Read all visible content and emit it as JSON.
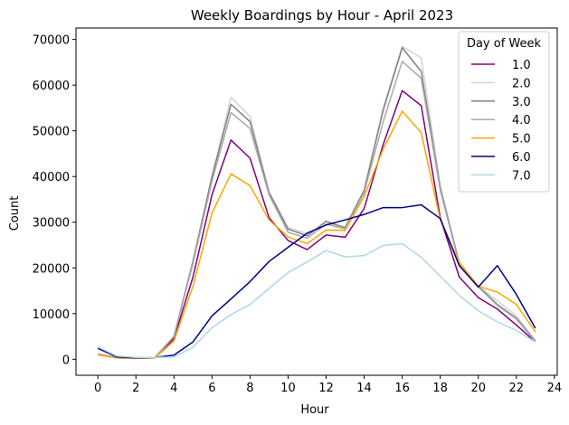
{
  "chart_data": {
    "type": "line",
    "title": "Weekly Boardings by Hour - April 2023",
    "xlabel": "Hour",
    "ylabel": "Count",
    "xlim": [
      -1.15,
      24.15
    ],
    "ylim": [
      -3500,
      72500
    ],
    "x_ticks": [
      0,
      2,
      4,
      6,
      8,
      10,
      12,
      14,
      16,
      18,
      20,
      22,
      24
    ],
    "y_ticks": [
      0,
      10000,
      20000,
      30000,
      40000,
      50000,
      60000,
      70000
    ],
    "grid": false,
    "legend": {
      "title": "Day of Week",
      "placement": "top-right"
    },
    "x": [
      0,
      1,
      2,
      3,
      4,
      5,
      6,
      7,
      8,
      9,
      10,
      11,
      12,
      13,
      14,
      15,
      16,
      17,
      18,
      19,
      20,
      21,
      22,
      23
    ],
    "series": [
      {
        "name": "1.0",
        "color": "#800080",
        "values": [
          1000,
          300,
          200,
          300,
          4500,
          18000,
          36000,
          48000,
          44000,
          31000,
          26000,
          24000,
          27200,
          26700,
          33000,
          47000,
          58800,
          55500,
          31000,
          18000,
          13500,
          11000,
          7500,
          3800
        ]
      },
      {
        "name": "2.0",
        "color": "#d3d3d3",
        "values": [
          1200,
          400,
          200,
          400,
          5000,
          21000,
          40000,
          57300,
          53200,
          36500,
          28800,
          27500,
          29500,
          29000,
          37000,
          55000,
          68500,
          66000,
          38000,
          21000,
          16000,
          12800,
          9500,
          4100
        ]
      },
      {
        "name": "3.0",
        "color": "#808080",
        "values": [
          1100,
          400,
          200,
          400,
          5000,
          21500,
          40000,
          55800,
          52000,
          36500,
          28500,
          27000,
          30200,
          28800,
          37000,
          54500,
          68200,
          63000,
          37500,
          21000,
          16000,
          12000,
          9000,
          4000
        ]
      },
      {
        "name": "4.0",
        "color": "#a9a9a9",
        "values": [
          1100,
          400,
          200,
          400,
          5000,
          21000,
          39000,
          54000,
          50500,
          36000,
          27800,
          26500,
          29600,
          28500,
          36500,
          52000,
          65200,
          61500,
          37000,
          20800,
          15800,
          11800,
          8800,
          3900
        ]
      },
      {
        "name": "5.0",
        "color": "#ffa500",
        "values": [
          1000,
          300,
          200,
          300,
          4000,
          16000,
          32000,
          40600,
          38000,
          30500,
          26800,
          25300,
          28300,
          28200,
          35700,
          46000,
          54300,
          49600,
          30500,
          21200,
          16000,
          14700,
          12000,
          6000
        ]
      },
      {
        "name": "6.0",
        "color": "#00008b",
        "values": [
          2400,
          500,
          300,
          400,
          900,
          3800,
          9500,
          13200,
          17000,
          21400,
          24500,
          27600,
          29400,
          30500,
          31700,
          33200,
          33200,
          33800,
          30800,
          20500,
          15800,
          20500,
          14200,
          6800
        ]
      },
      {
        "name": "7.0",
        "color": "#add8e6",
        "values": [
          2700,
          700,
          400,
          400,
          500,
          2600,
          6900,
          9800,
          12000,
          15500,
          19000,
          21300,
          23800,
          22400,
          22700,
          24900,
          25300,
          22300,
          18200,
          14000,
          10600,
          8200,
          6300,
          3800
        ]
      }
    ]
  }
}
